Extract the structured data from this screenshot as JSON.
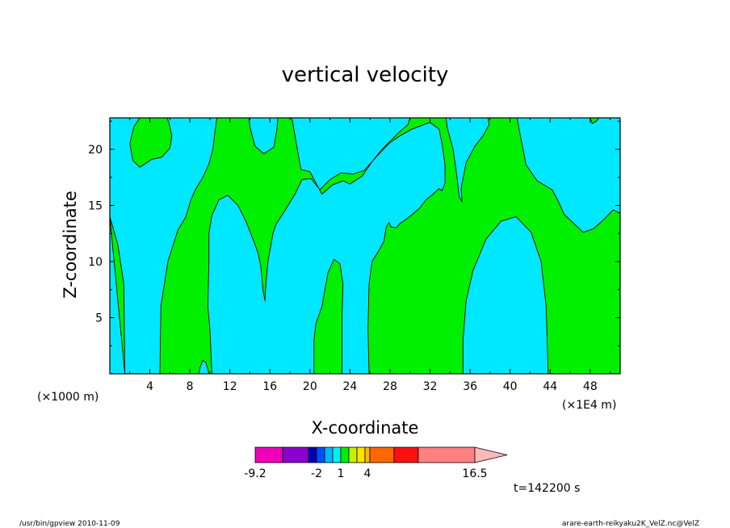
{
  "chart_data": {
    "type": "contour",
    "title": "vertical velocity",
    "xlabel": "X-coordinate",
    "ylabel": "Z-coordinate",
    "x_unit_left": "(×1000 m)",
    "x_unit_right": "(×1E4 m)",
    "xlim": [
      0,
      51
    ],
    "ylim": [
      0,
      22.8
    ],
    "xticks": [
      "4",
      "8",
      "12",
      "16",
      "20",
      "24",
      "28",
      "32",
      "36",
      "40",
      "44",
      "48"
    ],
    "xtick_values": [
      4,
      8,
      12,
      16,
      20,
      24,
      28,
      32,
      36,
      40,
      44,
      48
    ],
    "yticks": [
      "5",
      "10",
      "15",
      "20"
    ],
    "ytick_values": [
      5,
      10,
      15,
      20
    ],
    "fill_colors": {
      "negative": "#00e8ff",
      "positive": "#00f000"
    },
    "regions": [
      {
        "level": "negative",
        "polygon": [
          [
            0,
            0
          ],
          [
            0,
            22.8
          ],
          [
            51,
            22.8
          ],
          [
            51,
            0
          ]
        ]
      },
      {
        "level": "positive",
        "polygon": [
          [
            0,
            14
          ],
          [
            0.8,
            11.5
          ],
          [
            1.4,
            8
          ],
          [
            1.5,
            0
          ],
          [
            5,
            0
          ],
          [
            5.1,
            6
          ],
          [
            5.8,
            10
          ],
          [
            6.8,
            12.8
          ],
          [
            7.6,
            14
          ],
          [
            8.1,
            15.5
          ],
          [
            8.6,
            16.5
          ],
          [
            9.3,
            17.5
          ],
          [
            9.9,
            18.7
          ],
          [
            10.3,
            20
          ],
          [
            10.5,
            21.5
          ],
          [
            10.7,
            22.8
          ],
          [
            13.9,
            22.8
          ],
          [
            14,
            22
          ],
          [
            14.5,
            20.3
          ],
          [
            15.4,
            19.6
          ],
          [
            16.4,
            20.2
          ],
          [
            16.7,
            21.8
          ],
          [
            16.8,
            22.8
          ],
          [
            18.2,
            22.8
          ],
          [
            18.5,
            21.2
          ],
          [
            18.9,
            19.2
          ],
          [
            19.1,
            18.2
          ],
          [
            20,
            18
          ],
          [
            21.2,
            16
          ],
          [
            22.2,
            16.8
          ],
          [
            23.3,
            17.2
          ],
          [
            24,
            16.9
          ],
          [
            25.2,
            17.6
          ],
          [
            26.3,
            19
          ],
          [
            27.2,
            20
          ],
          [
            28.2,
            20.9
          ],
          [
            29,
            21.6
          ],
          [
            29.8,
            22.2
          ],
          [
            30,
            22.8
          ],
          [
            33.6,
            22.8
          ],
          [
            33.7,
            22
          ],
          [
            34.3,
            20
          ],
          [
            34.7,
            17.5
          ],
          [
            34.9,
            15.8
          ],
          [
            35.2,
            15.3
          ],
          [
            35.1,
            16.5
          ],
          [
            35.6,
            18.8
          ],
          [
            36.5,
            20.3
          ],
          [
            37.3,
            21.2
          ],
          [
            37.9,
            22.2
          ],
          [
            37.8,
            22.8
          ],
          [
            40.7,
            22.8
          ],
          [
            40.9,
            21.8
          ],
          [
            41.6,
            18.6
          ],
          [
            42.7,
            17.2
          ],
          [
            44.2,
            16.4
          ],
          [
            44.8,
            15.4
          ],
          [
            45.4,
            14.2
          ],
          [
            46.6,
            13.2
          ],
          [
            47.3,
            12.6
          ],
          [
            48.3,
            12.9
          ],
          [
            49.2,
            13.6
          ],
          [
            50.3,
            14.6
          ],
          [
            51,
            14.3
          ],
          [
            51,
            0
          ],
          [
            43.8,
            0
          ],
          [
            43.6,
            6
          ],
          [
            43.1,
            10
          ],
          [
            42.1,
            12.6
          ],
          [
            40.6,
            14
          ],
          [
            39.1,
            13.6
          ],
          [
            37.6,
            12
          ],
          [
            36.3,
            9.2
          ],
          [
            35.6,
            6.5
          ],
          [
            35.3,
            3
          ],
          [
            35.3,
            0
          ],
          [
            25.9,
            0
          ],
          [
            25.8,
            4
          ],
          [
            25.9,
            8
          ],
          [
            26.2,
            10
          ],
          [
            26.9,
            11
          ],
          [
            27.4,
            11.8
          ],
          [
            27.6,
            13
          ],
          [
            27.9,
            13.5
          ],
          [
            28.1,
            13.1
          ],
          [
            28.6,
            13
          ],
          [
            29,
            13.4
          ],
          [
            29.5,
            13.7
          ],
          [
            30.1,
            14.1
          ],
          [
            30.9,
            14.7
          ],
          [
            31.6,
            15.5
          ],
          [
            32.3,
            16
          ],
          [
            32.9,
            16.5
          ],
          [
            33.2,
            16.3
          ],
          [
            33.5,
            17
          ],
          [
            33.5,
            18.6
          ],
          [
            33.2,
            20.5
          ],
          [
            32.9,
            21.8
          ],
          [
            32,
            22.4
          ],
          [
            30.2,
            21.8
          ],
          [
            29,
            21.2
          ],
          [
            28,
            20.6
          ],
          [
            26.7,
            19.4
          ],
          [
            25.4,
            18.1
          ],
          [
            24.3,
            17.8
          ],
          [
            23.1,
            17.9
          ],
          [
            22,
            17.3
          ],
          [
            21,
            16.4
          ],
          [
            20.1,
            17.4
          ],
          [
            19.2,
            17.3
          ],
          [
            18.5,
            16
          ],
          [
            17.4,
            14.4
          ],
          [
            16.6,
            13.3
          ],
          [
            16.3,
            12.5
          ],
          [
            16,
            11
          ],
          [
            15.8,
            10
          ],
          [
            15.6,
            8
          ],
          [
            15.5,
            6.5
          ],
          [
            15.3,
            7.5
          ],
          [
            15.1,
            9.5
          ],
          [
            14.8,
            10.8
          ],
          [
            14.3,
            12
          ],
          [
            13.6,
            13.6
          ],
          [
            12.8,
            15
          ],
          [
            11.8,
            15.9
          ],
          [
            10.9,
            15.5
          ],
          [
            10.2,
            14.1
          ],
          [
            9.9,
            12.5
          ],
          [
            9.9,
            10
          ],
          [
            9.8,
            6
          ],
          [
            10,
            4
          ],
          [
            10.2,
            0
          ],
          [
            9.9,
            0
          ],
          [
            9.6,
            1
          ],
          [
            9.3,
            1.2
          ],
          [
            9,
            0.5
          ],
          [
            8.9,
            0
          ],
          [
            5,
            0
          ],
          [
            1.5,
            0
          ]
        ]
      },
      {
        "level": "positive",
        "polygon": [
          [
            20.4,
            0
          ],
          [
            20.4,
            3
          ],
          [
            20.6,
            4.5
          ],
          [
            21.2,
            6
          ],
          [
            21.8,
            9
          ],
          [
            22.4,
            10.2
          ],
          [
            23,
            9.8
          ],
          [
            23.3,
            8
          ],
          [
            23.2,
            5
          ],
          [
            23.2,
            0
          ]
        ]
      },
      {
        "level": "positive",
        "polygon": [
          [
            2,
            20.5
          ],
          [
            2.3,
            19
          ],
          [
            3,
            18.4
          ],
          [
            4.2,
            19.1
          ],
          [
            5.2,
            19.3
          ],
          [
            6,
            20.1
          ],
          [
            6.2,
            21.2
          ],
          [
            5.9,
            22.4
          ],
          [
            5.7,
            22.8
          ],
          [
            3,
            22.8
          ],
          [
            2.4,
            22
          ]
        ]
      },
      {
        "level": "positive",
        "polygon": [
          [
            48,
            22.8
          ],
          [
            48.2,
            22.3
          ],
          [
            48.6,
            22.5
          ],
          [
            48.9,
            22.8
          ]
        ]
      }
    ],
    "colorbar": {
      "colors": [
        "#ee00bb",
        "#8a00cc",
        "#0000b0",
        "#0050ff",
        "#00b8ff",
        "#00f0f0",
        "#00f000",
        "#c8f000",
        "#ffe000",
        "#ffb800",
        "#ff6800",
        "#ff1010",
        "#ff8080",
        "#ffb8b8"
      ],
      "labels": [
        "-9.2",
        "-2",
        "1",
        "4",
        "16.5"
      ],
      "label_positions": [
        0,
        4,
        6,
        9,
        14
      ]
    },
    "time_label": "t=142200 s"
  },
  "footer": {
    "left": "/usr/bin/gpview  2010-11-09",
    "right": "arare-earth-reikyaku2K_VelZ.nc@VelZ"
  }
}
